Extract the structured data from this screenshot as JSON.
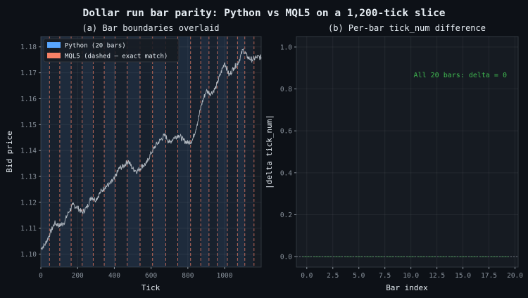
{
  "figure": {
    "title": "Dollar run bar parity: Python vs MQL5 on a 1,200-tick slice"
  },
  "colors": {
    "background": "#0d1117",
    "axes_bg": "#161b22",
    "python_bar_fill": "#58a6ff",
    "mql5_line": "#f78166",
    "price_line": "#b1b8c0",
    "annotation": "#3fb950",
    "text": "#e6edf3",
    "tick_text": "#8b949e"
  },
  "chart_data": [
    {
      "type": "line",
      "title": "(a)  Bar boundaries overlaid",
      "xlabel": "Tick",
      "ylabel": "Bid price",
      "xlim": [
        0,
        1199
      ],
      "ylim": [
        1.095,
        1.184
      ],
      "xticks": [
        0,
        200,
        400,
        600,
        800,
        1000
      ],
      "xtick_labels": [
        "0",
        "200",
        "400",
        "600",
        "800",
        "1000"
      ],
      "yticks": [
        1.1,
        1.11,
        1.12,
        1.13,
        1.14,
        1.15,
        1.16,
        1.17,
        1.18
      ],
      "ytick_labels": [
        "1.10",
        "1.11",
        "1.12",
        "1.13",
        "1.14",
        "1.15",
        "1.16",
        "1.17",
        "1.18"
      ],
      "grid": true,
      "legend_position": "upper-left",
      "legend": [
        {
          "label": "Python (20 bars)",
          "color": "#58a6ff"
        },
        {
          "label": "MQL5 (dashed — exact match)",
          "color": "#f78166"
        }
      ],
      "price_series": {
        "name": "Bid",
        "x": [
          0,
          25,
          50,
          75,
          100,
          125,
          150,
          175,
          200,
          225,
          250,
          275,
          300,
          325,
          350,
          375,
          400,
          425,
          450,
          475,
          500,
          525,
          550,
          575,
          600,
          625,
          650,
          675,
          700,
          725,
          750,
          775,
          800,
          825,
          850,
          875,
          900,
          925,
          950,
          975,
          1000,
          1025,
          1050,
          1075,
          1100,
          1125,
          1150,
          1175,
          1199
        ],
        "y": [
          1.102,
          1.104,
          1.108,
          1.112,
          1.111,
          1.112,
          1.116,
          1.119,
          1.118,
          1.116,
          1.118,
          1.122,
          1.121,
          1.124,
          1.126,
          1.127,
          1.129,
          1.133,
          1.134,
          1.136,
          1.133,
          1.132,
          1.134,
          1.135,
          1.139,
          1.142,
          1.144,
          1.146,
          1.143,
          1.145,
          1.146,
          1.144,
          1.143,
          1.144,
          1.15,
          1.158,
          1.163,
          1.162,
          1.164,
          1.169,
          1.174,
          1.169,
          1.172,
          1.174,
          1.179,
          1.176,
          1.175,
          1.176,
          1.176
        ]
      },
      "python_bars": [
        {
          "start": 0,
          "end": 47
        },
        {
          "start": 47,
          "end": 103
        },
        {
          "start": 103,
          "end": 165
        },
        {
          "start": 165,
          "end": 225
        },
        {
          "start": 225,
          "end": 285
        },
        {
          "start": 285,
          "end": 345
        },
        {
          "start": 345,
          "end": 405
        },
        {
          "start": 405,
          "end": 470
        },
        {
          "start": 470,
          "end": 540
        },
        {
          "start": 540,
          "end": 608
        },
        {
          "start": 608,
          "end": 680
        },
        {
          "start": 680,
          "end": 745
        },
        {
          "start": 745,
          "end": 815
        },
        {
          "start": 815,
          "end": 870
        },
        {
          "start": 870,
          "end": 915
        },
        {
          "start": 915,
          "end": 960
        },
        {
          "start": 960,
          "end": 1015
        },
        {
          "start": 1015,
          "end": 1070
        },
        {
          "start": 1070,
          "end": 1110
        },
        {
          "start": 1110,
          "end": 1160
        }
      ],
      "mql5_boundaries": [
        47,
        103,
        165,
        225,
        285,
        345,
        405,
        470,
        540,
        608,
        680,
        745,
        815,
        870,
        915,
        960,
        1015,
        1070,
        1110,
        1160
      ]
    },
    {
      "type": "bar",
      "title": "(b)  Per-bar tick_num difference",
      "xlabel": "Bar index",
      "ylabel": "|delta tick_num|",
      "xlim": [
        -1,
        20.3
      ],
      "ylim": [
        -0.05,
        1.05
      ],
      "xticks": [
        0,
        2.5,
        5,
        7.5,
        10,
        12.5,
        15,
        17.5,
        20
      ],
      "xtick_labels": [
        "0.0",
        "2.5",
        "5.0",
        "7.5",
        "10.0",
        "12.5",
        "15.0",
        "17.5",
        "20.0"
      ],
      "yticks": [
        0,
        0.2,
        0.4,
        0.6,
        0.8,
        1.0
      ],
      "ytick_labels": [
        "0.0",
        "0.2",
        "0.4",
        "0.6",
        "0.8",
        "1.0"
      ],
      "grid": true,
      "categories": [
        0,
        1,
        2,
        3,
        4,
        5,
        6,
        7,
        8,
        9,
        10,
        11,
        12,
        13,
        14,
        15,
        16,
        17,
        18,
        19
      ],
      "values": [
        0,
        0,
        0,
        0,
        0,
        0,
        0,
        0,
        0,
        0,
        0,
        0,
        0,
        0,
        0,
        0,
        0,
        0,
        0,
        0
      ],
      "reference_line_y": 0,
      "annotation": "All 20 bars: delta = 0"
    }
  ]
}
